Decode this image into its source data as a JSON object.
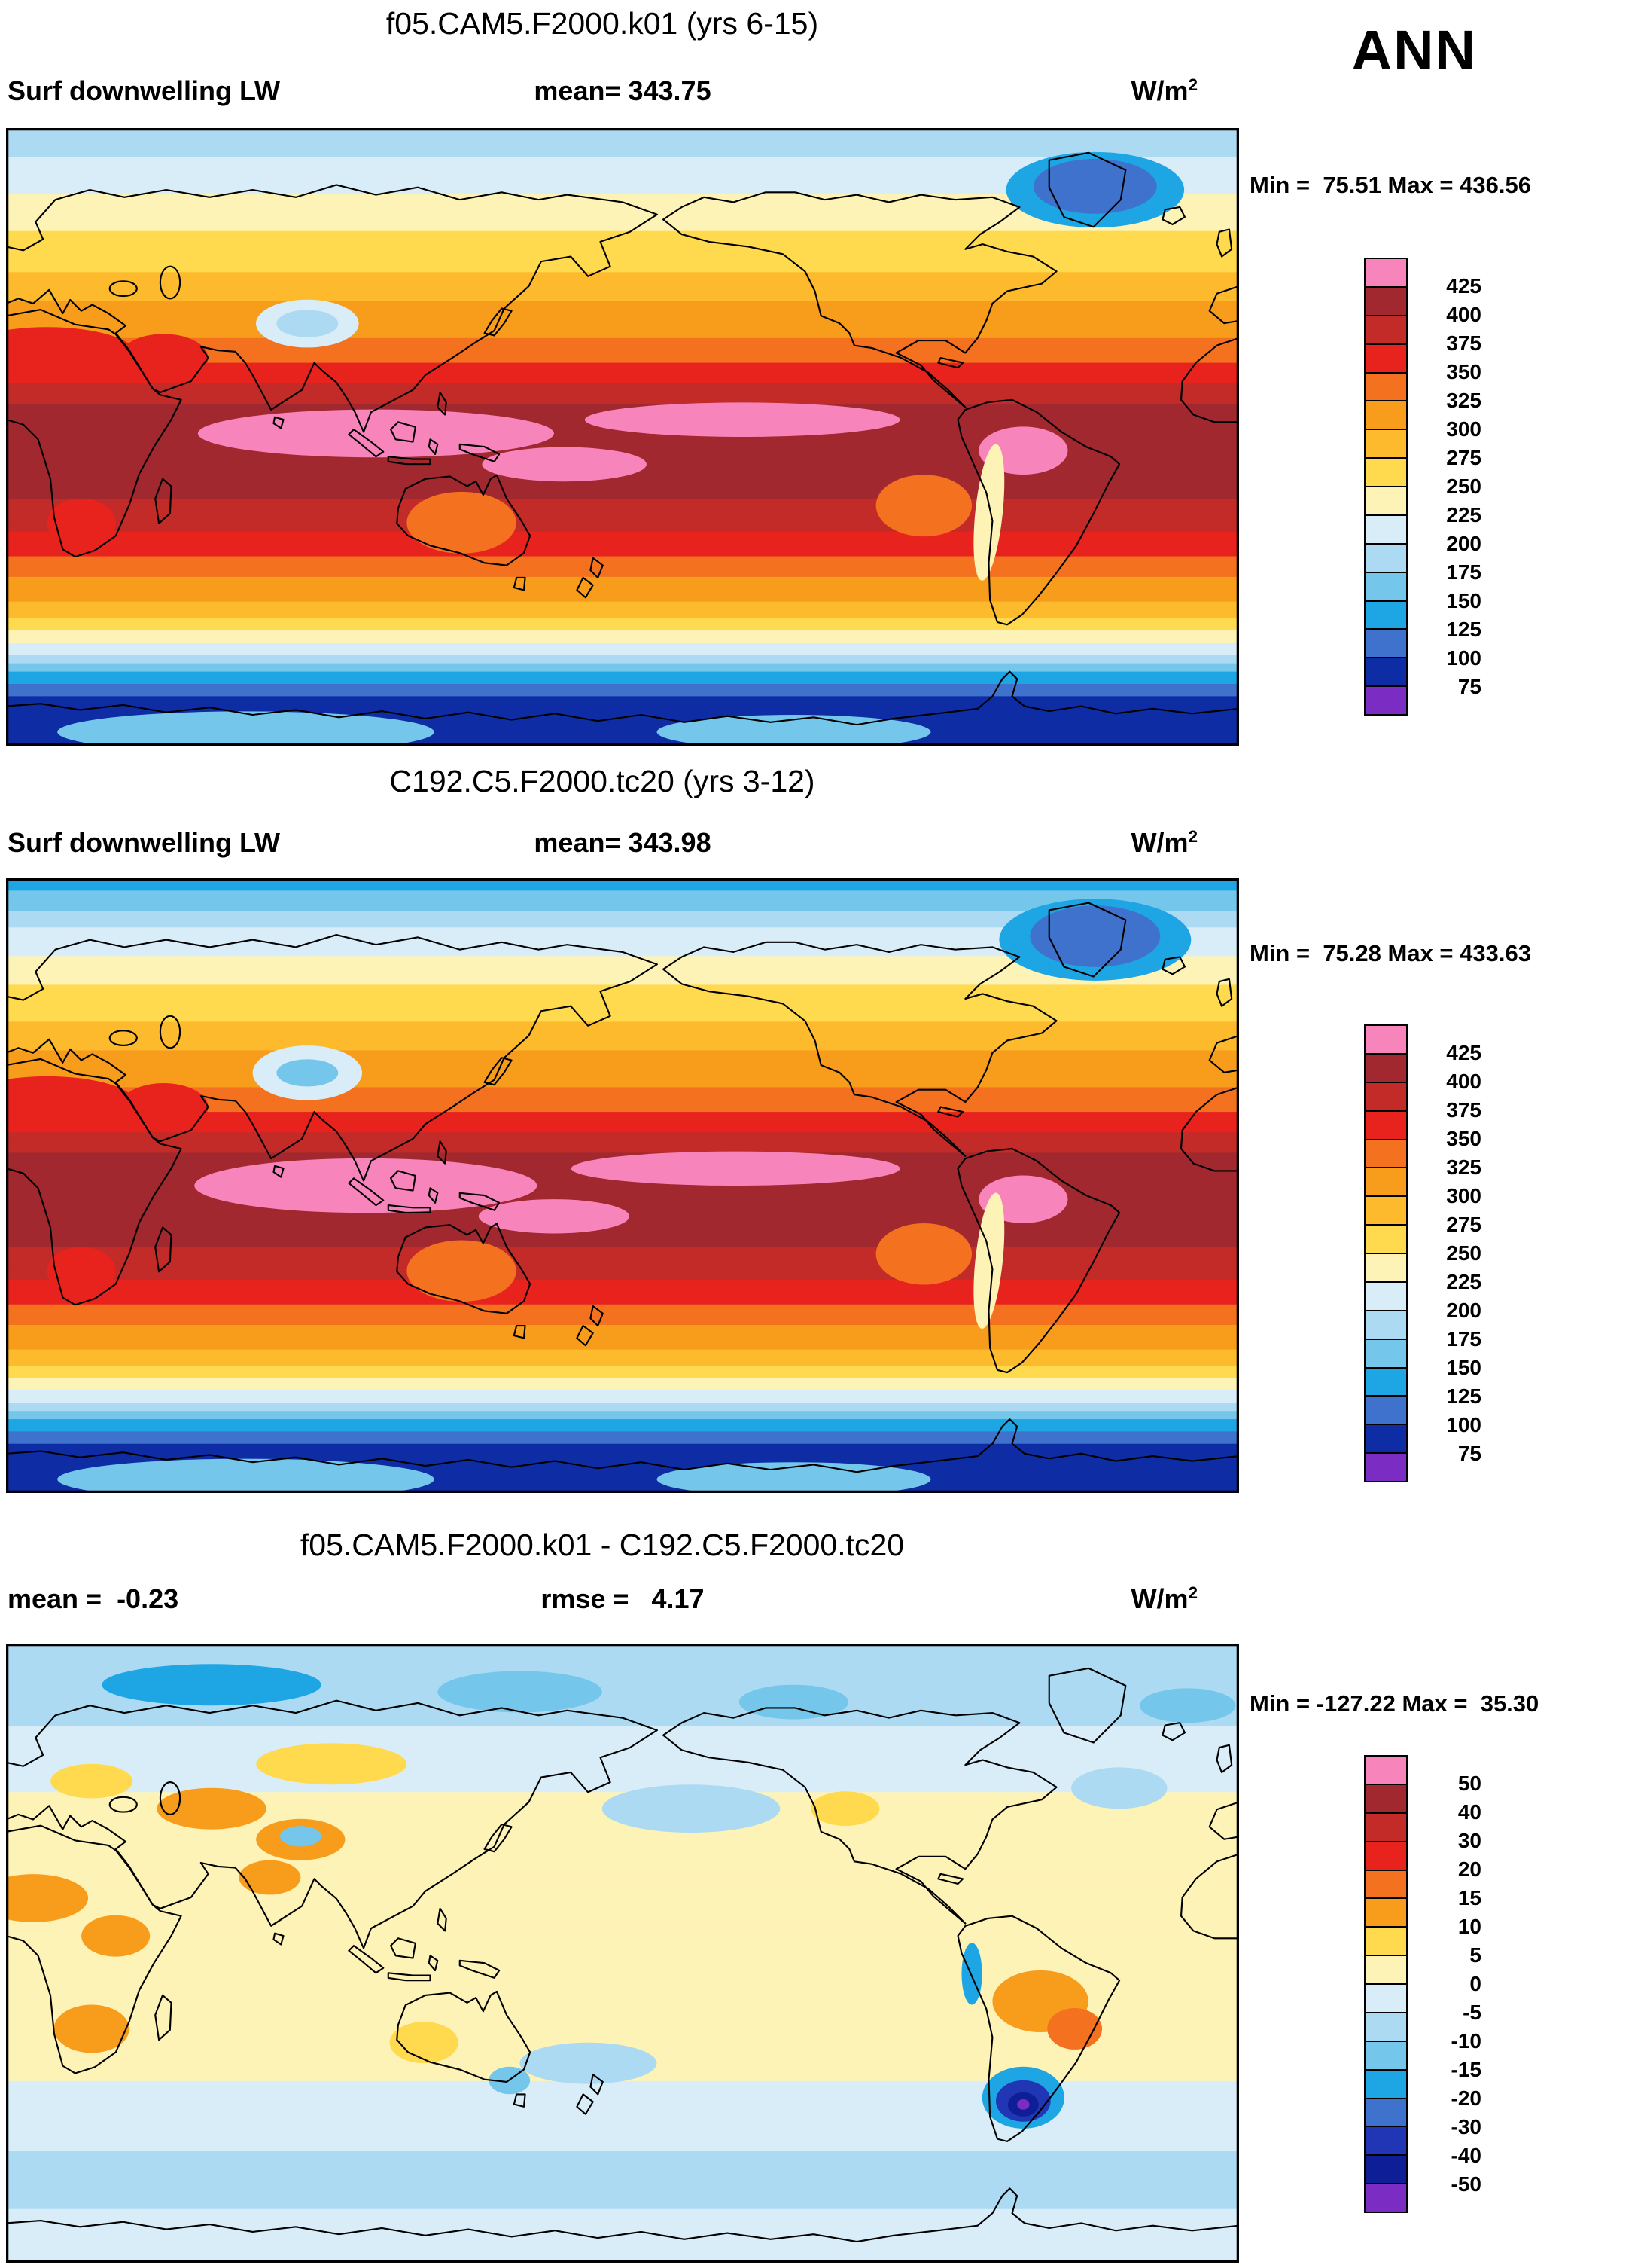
{
  "page": {
    "season": "ANN"
  },
  "units": {
    "base": "W/m",
    "exp": "2"
  },
  "panels": [
    {
      "title": "f05.CAM5.F2000.k01 (yrs 6-15)",
      "left_label": "Surf downwelling LW",
      "center_label": "mean= 343.75",
      "minmax": "Min =  75.51 Max = 436.56"
    },
    {
      "title": "C192.C5.F2000.tc20 (yrs 3-12)",
      "left_label": "Surf downwelling LW",
      "center_label": "mean= 343.98",
      "minmax": "Min =  75.28 Max = 433.63"
    },
    {
      "title": "f05.CAM5.F2000.k01 - C192.C5.F2000.tc20",
      "left_label": "mean =  -0.23",
      "center_label": "rmse =   4.17",
      "minmax": "Min = -127.22 Max =  35.30"
    }
  ],
  "chart_data": [
    {
      "type": "heatmap",
      "title": "f05.CAM5.F2000.k01 (yrs 6-15)",
      "variable": "Surf downwelling LW",
      "season": "ANN",
      "units": "W/m^2",
      "mean": 343.75,
      "min": 75.51,
      "max": 436.56,
      "projection": "global lat-lon, longitude 0-360",
      "colorbar_levels": [
        425,
        400,
        375,
        350,
        325,
        300,
        275,
        250,
        225,
        200,
        175,
        150,
        125,
        100,
        75
      ],
      "colorbar_colors": [
        "#F884BC",
        "#A0282E",
        "#C22B28",
        "#E8231E",
        "#F4711F",
        "#F89C1C",
        "#FDBA2C",
        "#FFD94E",
        "#FEF3B6",
        "#D9EDF9",
        "#ACDAF2",
        "#74C6EA",
        "#1EA6E4",
        "#3E72CC",
        "#0E2CA4",
        "#7B2CC2"
      ],
      "zonal_profile": {
        "lat": [
          90,
          84,
          78,
          72,
          66,
          60,
          54,
          48,
          42,
          36,
          30,
          24,
          18,
          12,
          6,
          0,
          -6,
          -12,
          -18,
          -24,
          -30,
          -36,
          -42,
          -48,
          -53,
          -58,
          -62,
          -66,
          -70,
          -75,
          -82,
          -90
        ],
        "value": [
          190,
          196,
          208,
          222,
          236,
          250,
          262,
          276,
          292,
          310,
          322,
          340,
          362,
          392,
          410,
          416,
          416,
          410,
          400,
          388,
          366,
          344,
          322,
          298,
          272,
          244,
          214,
          176,
          138,
          102,
          88,
          86
        ]
      },
      "features": [
        {
          "name": "sahara-hot",
          "lon": 12,
          "lat": 24,
          "rlon": 26,
          "rlat": 8,
          "value": 352
        },
        {
          "name": "arabia-hot",
          "lon": 46,
          "lat": 23,
          "rlon": 13,
          "rlat": 7,
          "value": 358
        },
        {
          "name": "kalahari-warm",
          "lon": 22,
          "lat": -25,
          "rlon": 10,
          "rlat": 7,
          "value": 352
        },
        {
          "name": "australia-interior-warm",
          "lon": 133,
          "lat": -25,
          "rlon": 16,
          "rlat": 9,
          "value": 340
        },
        {
          "name": "peru-stratus-wedge",
          "lon": 268,
          "lat": -20,
          "rlon": 14,
          "rlat": 9,
          "value": 342
        },
        {
          "name": "itcz-pink-indo-pacific",
          "lon": 108,
          "lat": 1,
          "rlon": 52,
          "rlat": 7,
          "value": 430
        },
        {
          "name": "itcz-pink-east-pacific",
          "lon": 215,
          "lat": 5,
          "rlon": 46,
          "rlat": 5,
          "value": 430
        },
        {
          "name": "spcz-pink",
          "lon": 163,
          "lat": -8,
          "rlon": 24,
          "rlat": 5,
          "value": 430
        },
        {
          "name": "amazon-pink",
          "lon": 297,
          "lat": -4,
          "rlon": 13,
          "rlat": 7,
          "value": 430
        },
        {
          "name": "tibet-cool-outer",
          "lon": 88,
          "lat": 33,
          "rlon": 15,
          "rlat": 7,
          "value": 212
        },
        {
          "name": "tibet-cool-inner",
          "lon": 88,
          "lat": 33,
          "rlon": 9,
          "rlat": 4,
          "value": 188
        },
        {
          "name": "greenland-cold-outer",
          "lon": 318,
          "lat": 72,
          "rlon": 26,
          "rlat": 11,
          "value": 142
        },
        {
          "name": "greenland-cold-inner",
          "lon": 318,
          "lat": 73,
          "rlon": 18,
          "rlat": 8,
          "value": 112
        },
        {
          "name": "andes-cool-stripe",
          "lon": 287,
          "lat": -22,
          "rlon": 4,
          "rlat": 20,
          "value": 235,
          "rot": 6
        },
        {
          "name": "antarctic-interior-light-1",
          "lon": 70,
          "lat": -86,
          "rlon": 55,
          "rlat": 6,
          "value": 150
        },
        {
          "name": "antarctic-interior-light-2",
          "lon": 230,
          "lat": -86,
          "rlon": 40,
          "rlat": 5,
          "value": 162
        }
      ]
    },
    {
      "type": "heatmap",
      "title": "C192.C5.F2000.tc20 (yrs 3-12)",
      "variable": "Surf downwelling LW",
      "season": "ANN",
      "units": "W/m^2",
      "mean": 343.98,
      "min": 75.28,
      "max": 433.63,
      "projection": "global lat-lon, longitude 0-360",
      "colorbar_levels": [
        425,
        400,
        375,
        350,
        325,
        300,
        275,
        250,
        225,
        200,
        175,
        150,
        125,
        100,
        75
      ],
      "colorbar_colors": [
        "#F884BC",
        "#A0282E",
        "#C22B28",
        "#E8231E",
        "#F4711F",
        "#F89C1C",
        "#FDBA2C",
        "#FFD94E",
        "#FEF3B6",
        "#D9EDF9",
        "#ACDAF2",
        "#74C6EA",
        "#1EA6E4",
        "#3E72CC",
        "#0E2CA4",
        "#7B2CC2"
      ],
      "zonal_profile": {
        "lat": [
          90,
          86,
          82,
          77,
          72,
          66,
          60,
          54,
          48,
          42,
          36,
          30,
          24,
          18,
          12,
          6,
          0,
          -6,
          -12,
          -18,
          -24,
          -30,
          -36,
          -42,
          -48,
          -53,
          -58,
          -62,
          -66,
          -70,
          -75,
          -82,
          -90
        ],
        "value": [
          142,
          152,
          170,
          192,
          212,
          230,
          248,
          262,
          276,
          292,
          310,
          322,
          342,
          364,
          394,
          412,
          418,
          418,
          412,
          400,
          388,
          366,
          344,
          322,
          298,
          272,
          244,
          214,
          176,
          138,
          102,
          88,
          86
        ]
      },
      "features": [
        {
          "name": "sahara-hot",
          "lon": 12,
          "lat": 24,
          "rlon": 26,
          "rlat": 8,
          "value": 352
        },
        {
          "name": "arabia-hot",
          "lon": 46,
          "lat": 23,
          "rlon": 13,
          "rlat": 7,
          "value": 358
        },
        {
          "name": "kalahari-warm",
          "lon": 22,
          "lat": -25,
          "rlon": 10,
          "rlat": 7,
          "value": 352
        },
        {
          "name": "australia-interior-warm",
          "lon": 133,
          "lat": -25,
          "rlon": 16,
          "rlat": 9,
          "value": 342
        },
        {
          "name": "peru-stratus-wedge",
          "lon": 268,
          "lat": -20,
          "rlon": 14,
          "rlat": 9,
          "value": 342
        },
        {
          "name": "itcz-pink-indo-pacific",
          "lon": 105,
          "lat": 0,
          "rlon": 50,
          "rlat": 8,
          "value": 430
        },
        {
          "name": "itcz-pink-east-pacific",
          "lon": 213,
          "lat": 5,
          "rlon": 48,
          "rlat": 5,
          "value": 430
        },
        {
          "name": "spcz-pink",
          "lon": 160,
          "lat": -9,
          "rlon": 22,
          "rlat": 5,
          "value": 430
        },
        {
          "name": "amazon-pink",
          "lon": 297,
          "lat": -4,
          "rlon": 13,
          "rlat": 7,
          "value": 430
        },
        {
          "name": "tibet-cool-outer",
          "lon": 88,
          "lat": 33,
          "rlon": 16,
          "rlat": 8,
          "value": 210
        },
        {
          "name": "tibet-cool-inner",
          "lon": 88,
          "lat": 33,
          "rlon": 9,
          "rlat": 4,
          "value": 162
        },
        {
          "name": "greenland-cold-outer",
          "lon": 318,
          "lat": 72,
          "rlon": 28,
          "rlat": 12,
          "value": 140
        },
        {
          "name": "greenland-cold-inner",
          "lon": 318,
          "lat": 73,
          "rlon": 19,
          "rlat": 9,
          "value": 110
        },
        {
          "name": "andes-cool-stripe",
          "lon": 287,
          "lat": -22,
          "rlon": 4,
          "rlat": 20,
          "value": 235,
          "rot": 6
        },
        {
          "name": "antarctic-interior-light-1",
          "lon": 70,
          "lat": -86,
          "rlon": 55,
          "rlat": 6,
          "value": 152
        },
        {
          "name": "antarctic-interior-light-2",
          "lon": 230,
          "lat": -86,
          "rlon": 40,
          "rlat": 5,
          "value": 160
        }
      ]
    },
    {
      "type": "heatmap",
      "title": "f05.CAM5.F2000.k01 - C192.C5.F2000.tc20",
      "variable": "Surf downwelling LW difference",
      "season": "ANN",
      "units": "W/m^2",
      "mean": -0.23,
      "rmse": 4.17,
      "min": -127.22,
      "max": 35.3,
      "projection": "global lat-lon, longitude 0-360",
      "colorbar_levels": [
        50,
        40,
        30,
        20,
        15,
        10,
        5,
        0,
        -5,
        -10,
        -15,
        -20,
        -30,
        -40,
        -50
      ],
      "colorbar_colors": [
        "#F884BC",
        "#A0282E",
        "#C22B28",
        "#E8231E",
        "#F4711F",
        "#F89C1C",
        "#FFD94E",
        "#FEF3B6",
        "#D9EDF9",
        "#ACDAF2",
        "#74C6EA",
        "#1EA6E4",
        "#3E72CC",
        "#2136B4",
        "#0E1E96",
        "#7B2CC2"
      ],
      "zonal_profile": {
        "lat": [
          90,
          82,
          74,
          66,
          58,
          50,
          40,
          20,
          0,
          -20,
          -36,
          -40,
          -46,
          -52,
          -58,
          -64,
          -70,
          -76,
          -84,
          -90
        ],
        "value": [
          -8,
          -8,
          -7,
          -5,
          -3,
          -1,
          2,
          2,
          2,
          2,
          1,
          -2,
          -3,
          -3,
          -5,
          -7,
          -7,
          -4,
          -3,
          -3
        ]
      },
      "features": [
        {
          "name": "arctic-cold-1",
          "lon": 60,
          "lat": 78,
          "rlon": 32,
          "rlat": 6,
          "value": -17
        },
        {
          "name": "arctic-cold-2",
          "lon": 150,
          "lat": 76,
          "rlon": 24,
          "rlat": 6,
          "value": -13
        },
        {
          "name": "arctic-cold-3",
          "lon": 230,
          "lat": 73,
          "rlon": 16,
          "rlat": 5,
          "value": -12
        },
        {
          "name": "arctic-cold-4",
          "lon": 345,
          "lat": 72,
          "rlon": 14,
          "rlat": 5,
          "value": -13
        },
        {
          "name": "npac-cool",
          "lon": 200,
          "lat": 42,
          "rlon": 26,
          "rlat": 7,
          "value": -7
        },
        {
          "name": "natl-cool",
          "lon": 325,
          "lat": 48,
          "rlon": 14,
          "rlat": 6,
          "value": -7
        },
        {
          "name": "spac-cool",
          "lon": 170,
          "lat": -32,
          "rlon": 20,
          "rlat": 6,
          "value": -7
        },
        {
          "name": "siberia-warm",
          "lon": 95,
          "lat": 55,
          "rlon": 22,
          "rlat": 6,
          "value": 8
        },
        {
          "name": "centralasia-warm",
          "lon": 60,
          "lat": 42,
          "rlon": 16,
          "rlat": 6,
          "value": 12
        },
        {
          "name": "europe-warm",
          "lon": 25,
          "lat": 50,
          "rlon": 12,
          "rlat": 5,
          "value": 8
        },
        {
          "name": "namerica-warm",
          "lon": 245,
          "lat": 42,
          "rlon": 10,
          "rlat": 5,
          "value": 8
        },
        {
          "name": "sahara-warm",
          "lon": 8,
          "lat": 16,
          "rlon": 16,
          "rlat": 7,
          "value": 11
        },
        {
          "name": "eastafrica-warm",
          "lon": 32,
          "lat": 5,
          "rlon": 10,
          "rlat": 6,
          "value": 13
        },
        {
          "name": "safrica-warm",
          "lon": 25,
          "lat": -22,
          "rlon": 11,
          "rlat": 7,
          "value": 12
        },
        {
          "name": "india-warm",
          "lon": 77,
          "lat": 22,
          "rlon": 9,
          "rlat": 5,
          "value": 10
        },
        {
          "name": "tibet-warm-ring",
          "lon": 86,
          "lat": 33,
          "rlon": 13,
          "rlat": 6,
          "value": 13
        },
        {
          "name": "tibet-cool-core",
          "lon": 86,
          "lat": 34,
          "rlon": 6,
          "rlat": 3,
          "value": -12
        },
        {
          "name": "aus-west-warm",
          "lon": 122,
          "lat": -26,
          "rlon": 10,
          "rlat": 6,
          "value": 8
        },
        {
          "name": "aus-se-cool",
          "lon": 147,
          "lat": -37,
          "rlon": 6,
          "rlat": 4,
          "value": -12
        },
        {
          "name": "samerica-warm",
          "lon": 302,
          "lat": -14,
          "rlon": 14,
          "rlat": 9,
          "value": 12
        },
        {
          "name": "samerica-warm-2",
          "lon": 312,
          "lat": -22,
          "rlon": 8,
          "rlat": 6,
          "value": 17
        },
        {
          "name": "andes-cool-streak",
          "lon": 282,
          "lat": -6,
          "rlon": 3,
          "rlat": 9,
          "value": -17
        },
        {
          "name": "argentina-cool-ring",
          "lon": 297,
          "lat": -42,
          "rlon": 12,
          "rlat": 9,
          "value": -17
        },
        {
          "name": "argentina-cold",
          "lon": 297,
          "lat": -43,
          "rlon": 8,
          "rlat": 6,
          "value": -32
        },
        {
          "name": "argentina-cold-core",
          "lon": 297,
          "lat": -44,
          "rlon": 4.5,
          "rlat": 3.5,
          "value": -45
        },
        {
          "name": "argentina-cold-minimum",
          "lon": 297,
          "lat": -44,
          "rlon": 1.8,
          "rlat": 1.5,
          "value": -60
        }
      ]
    }
  ]
}
